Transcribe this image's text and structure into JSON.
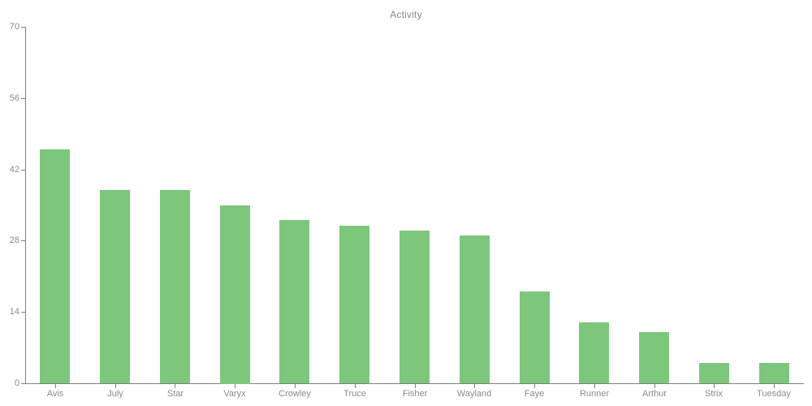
{
  "chart_data": {
    "type": "bar",
    "title": "Activity",
    "categories": [
      "Avis",
      "July",
      "Star",
      "Varyx",
      "Crowley",
      "Truce",
      "Fisher",
      "Wayland",
      "Faye",
      "Runner",
      "Arthur",
      "Strix",
      "Tuesday"
    ],
    "values": [
      46,
      38,
      38,
      35,
      32,
      31,
      30,
      29,
      18,
      12,
      10,
      4,
      4
    ],
    "xlabel": "",
    "ylabel": "",
    "ylim": [
      0,
      70
    ],
    "yticks": [
      0,
      14,
      28,
      42,
      56,
      70
    ],
    "grid": false,
    "legend": false,
    "bar_color": "#7cc77c",
    "axis_color": "#808080",
    "tick_label_color": "#8a8a8a",
    "title_color": "#878787",
    "background_color": "#ffffff"
  }
}
